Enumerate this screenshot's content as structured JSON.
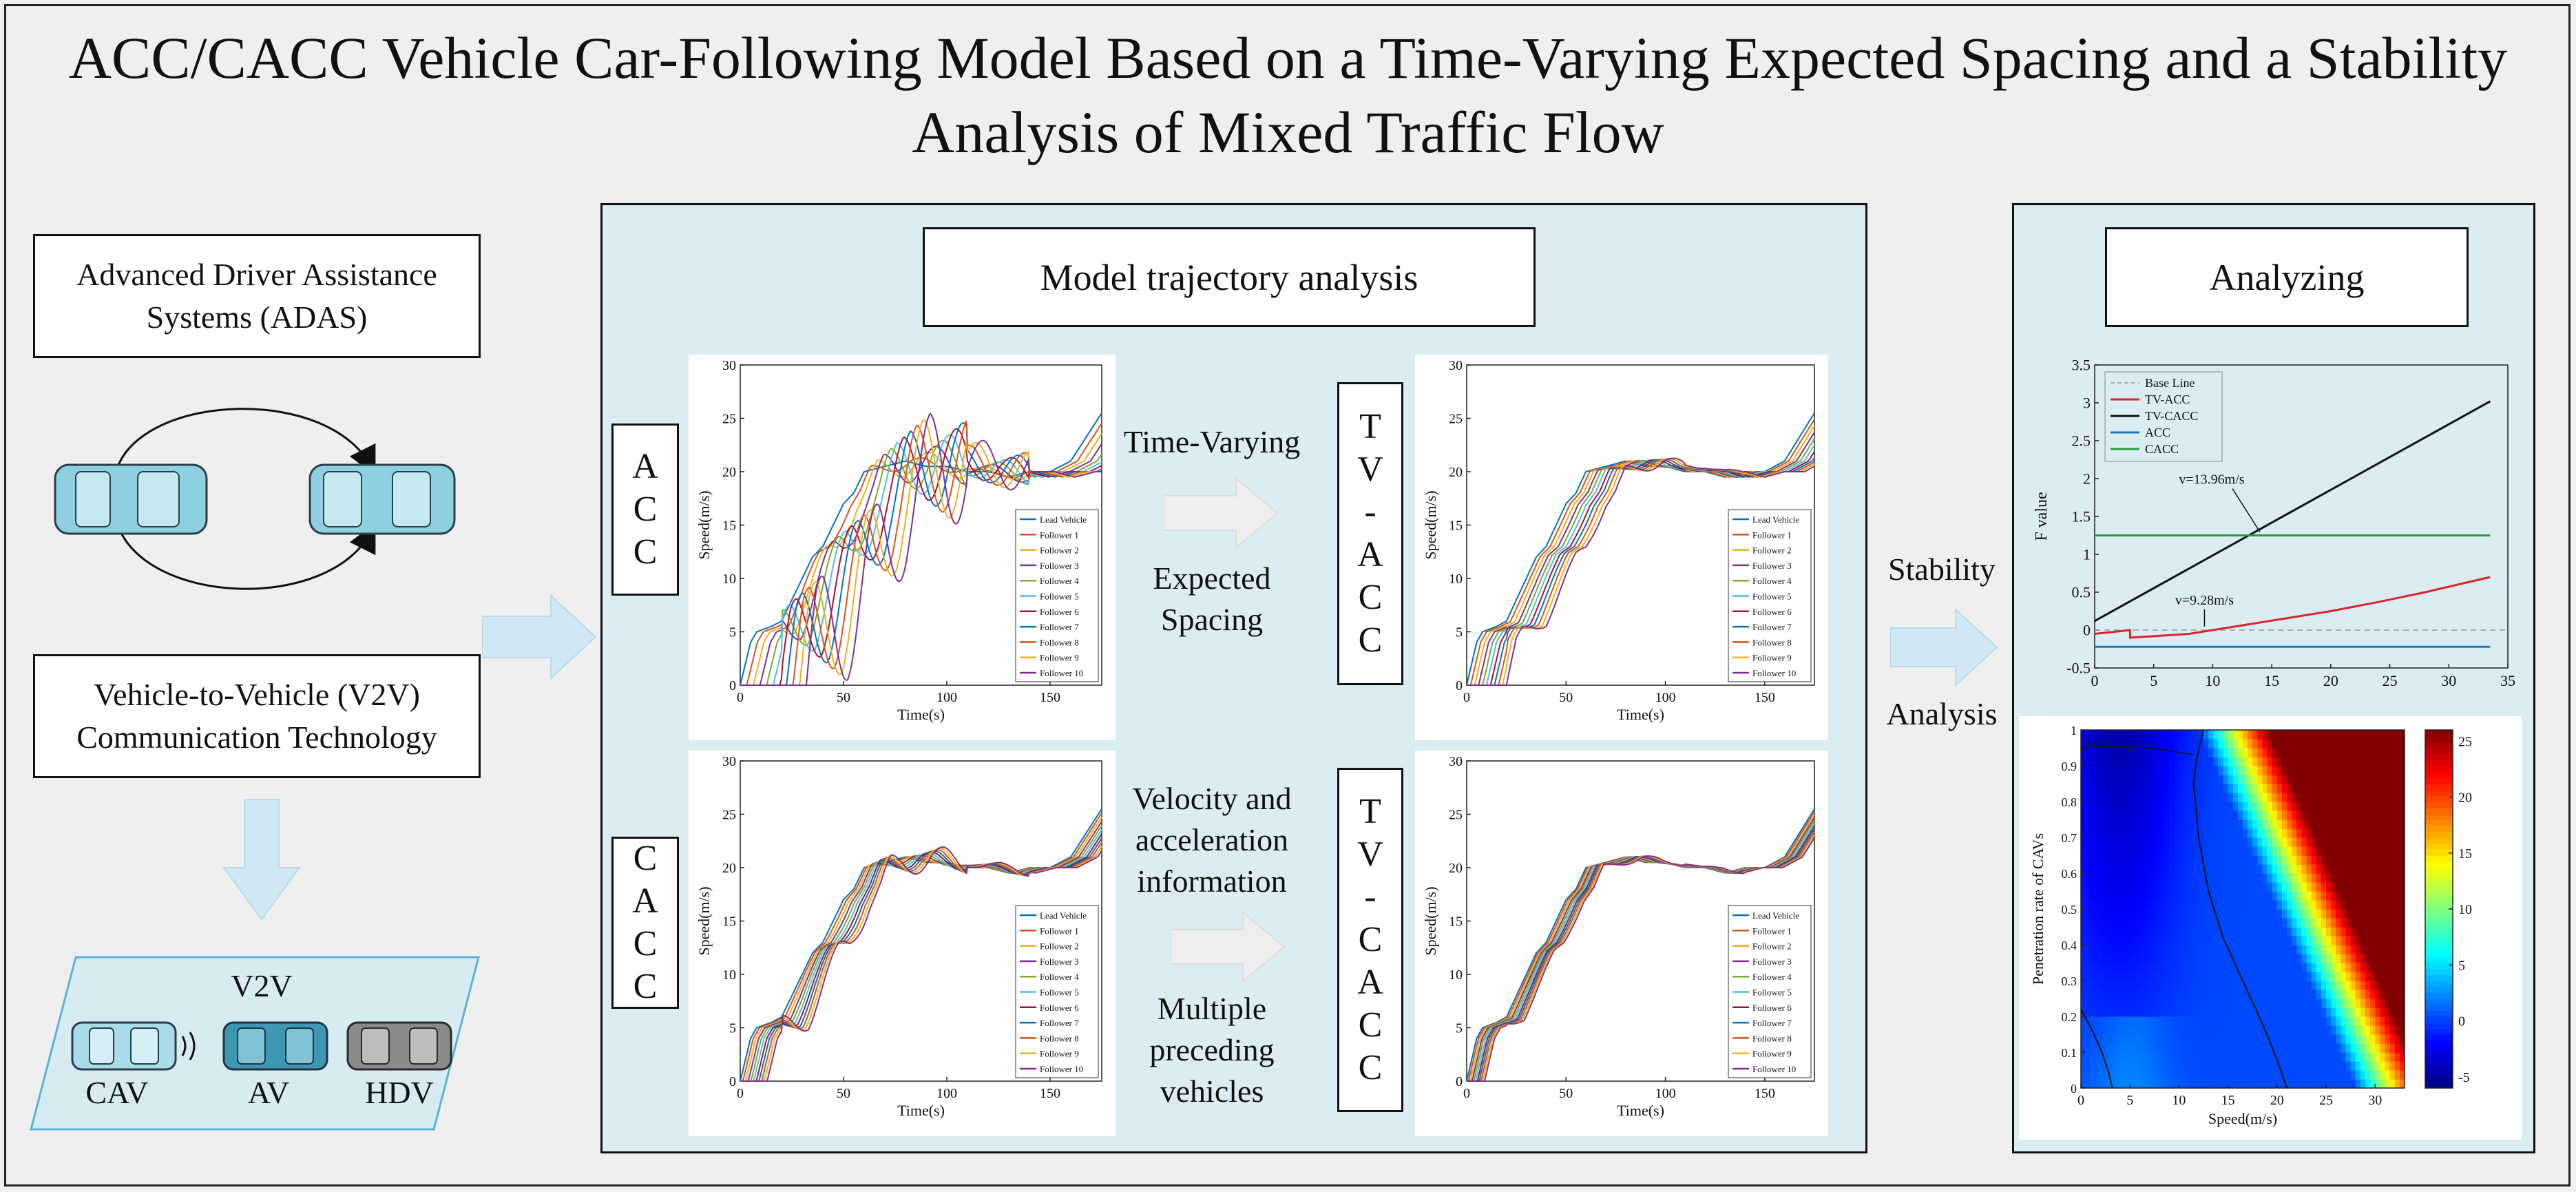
{
  "title": "ACC/CACC Vehicle Car-Following Model Based on a Time-Varying Expected Spacing and a Stability Analysis of Mixed Traffic Flow",
  "left": {
    "adas_label": "Advanced Driver Assistance Systems (ADAS)",
    "v2v_label": "Vehicle-to-Vehicle (V2V) Communication Technology",
    "v2v_tag": "V2V",
    "vehicle_types": [
      "CAV",
      "AV",
      "HDV"
    ]
  },
  "middle": {
    "heading": "Model trajectory analysis",
    "row_labels": [
      "A\nC\nC",
      "C\nA\nC\nC"
    ],
    "tv_labels": [
      "T\nV\n-\nA\nC\nC",
      "T\nV\n-\nC\nA\nC\nC"
    ],
    "arrow_top_above": "Time-Varying",
    "arrow_top_below": "Expected\nSpacing",
    "arrow_bottom_above": "Velocity and\nacceleration\ninformation",
    "arrow_bottom_below": "Multiple\npreceding\nvehicles",
    "legend": [
      "Lead Vehicle",
      "Follower 1",
      "Follower 2",
      "Follower 3",
      "Follower 4",
      "Follower 5",
      "Follower 6",
      "Follower 7",
      "Follower 8",
      "Follower 9",
      "Follower 10"
    ],
    "legend_colors": [
      "#0072bd",
      "#d95319",
      "#edb120",
      "#7e2f8e",
      "#77ac30",
      "#4dbeee",
      "#a2142f",
      "#0072bd",
      "#d95319",
      "#edb120",
      "#7e2f8e"
    ]
  },
  "stability": {
    "above": "Stability",
    "below": "Analysis"
  },
  "right": {
    "heading": "Analyzing"
  },
  "chart_data": [
    {
      "type": "line",
      "panel": "ACC",
      "xlabel": "Time(s)",
      "ylabel": "Speed(m/s)",
      "xlim": [
        0,
        175
      ],
      "ylim": [
        0,
        30
      ],
      "xticks": [
        0,
        50,
        100,
        150
      ],
      "yticks": [
        0,
        5,
        10,
        15,
        20,
        25,
        30
      ],
      "lead_x": [
        0,
        5,
        8,
        15,
        20,
        25,
        30,
        35,
        40,
        45,
        50,
        55,
        60,
        70,
        80,
        90,
        100,
        110,
        120,
        130,
        140,
        150,
        160,
        170,
        175
      ],
      "lead_y": [
        0,
        4,
        5,
        5.5,
        6,
        8,
        10,
        12,
        13,
        15,
        17,
        18,
        20,
        20.5,
        21,
        20.5,
        20.5,
        20,
        20,
        19.5,
        20,
        20,
        21,
        24,
        25.5
      ],
      "lag_step": 3.2,
      "amplitude_gain": 0.55
    },
    {
      "type": "line",
      "panel": "TV-ACC",
      "xlabel": "Time(s)",
      "ylabel": "Speed(m/s)",
      "xlim": [
        0,
        175
      ],
      "ylim": [
        0,
        30
      ],
      "xticks": [
        0,
        50,
        100,
        150
      ],
      "yticks": [
        0,
        5,
        10,
        15,
        20,
        25,
        30
      ],
      "lead_x": [
        0,
        5,
        8,
        15,
        20,
        25,
        30,
        35,
        40,
        45,
        50,
        55,
        60,
        70,
        80,
        90,
        100,
        110,
        120,
        130,
        140,
        150,
        160,
        170,
        175
      ],
      "lead_y": [
        0,
        4,
        5,
        5.5,
        6,
        8,
        10,
        12,
        13,
        15,
        17,
        18,
        20,
        20.5,
        21,
        20.5,
        20.5,
        20,
        20,
        19.5,
        20,
        20,
        21,
        24,
        25.5
      ],
      "lag_step": 2.0,
      "amplitude_gain": 0.05
    },
    {
      "type": "line",
      "panel": "CACC",
      "xlabel": "Time(s)",
      "ylabel": "Speed(m/s)",
      "xlim": [
        0,
        175
      ],
      "ylim": [
        0,
        30
      ],
      "xticks": [
        0,
        50,
        100,
        150
      ],
      "yticks": [
        0,
        5,
        10,
        15,
        20,
        25,
        30
      ],
      "lead_x": [
        0,
        5,
        8,
        15,
        20,
        25,
        30,
        35,
        40,
        45,
        50,
        55,
        60,
        70,
        80,
        90,
        100,
        110,
        120,
        130,
        140,
        150,
        160,
        170,
        175
      ],
      "lead_y": [
        0,
        4,
        5,
        5.5,
        6,
        8,
        10,
        12,
        13,
        15,
        17,
        18,
        20,
        20.5,
        21,
        20.5,
        20.5,
        20,
        20,
        19.5,
        20,
        20,
        21,
        24,
        25.5
      ],
      "lag_step": 1.3,
      "amplitude_gain": 0.12
    },
    {
      "type": "line",
      "panel": "TV-CACC",
      "xlabel": "Time(s)",
      "ylabel": "Speed(m/s)",
      "xlim": [
        0,
        175
      ],
      "ylim": [
        0,
        30
      ],
      "xticks": [
        0,
        50,
        100,
        150
      ],
      "yticks": [
        0,
        5,
        10,
        15,
        20,
        25,
        30
      ],
      "lead_x": [
        0,
        5,
        8,
        15,
        20,
        25,
        30,
        35,
        40,
        45,
        50,
        55,
        60,
        70,
        80,
        90,
        100,
        110,
        120,
        130,
        140,
        150,
        160,
        170,
        175
      ],
      "lead_y": [
        0,
        4,
        5,
        5.5,
        6,
        8,
        10,
        12,
        13,
        15,
        17,
        18,
        20,
        20.5,
        21,
        20.5,
        20.5,
        20,
        20,
        19.5,
        20,
        20,
        21,
        24,
        25.5
      ],
      "lag_step": 0.9,
      "amplitude_gain": 0.03
    },
    {
      "type": "line",
      "panel": "F-value",
      "xlabel": "",
      "ylabel": "F value",
      "xlim": [
        0,
        35
      ],
      "ylim": [
        -0.5,
        3.5
      ],
      "xticks": [
        0,
        5,
        10,
        15,
        20,
        25,
        30,
        35
      ],
      "yticks": [
        -0.5,
        0,
        0.5,
        1,
        1.5,
        2,
        2.5,
        3,
        3.5
      ],
      "series": [
        {
          "name": "Base Line",
          "color": "#999999",
          "dashed": true,
          "x": [
            0,
            35
          ],
          "y": [
            0,
            0
          ]
        },
        {
          "name": "TV-ACC",
          "color": "#d62728",
          "x": [
            0,
            3,
            3,
            8,
            12,
            16,
            20,
            24,
            28,
            33.5
          ],
          "y": [
            -0.05,
            0,
            -0.1,
            -0.05,
            0.05,
            0.15,
            0.25,
            0.37,
            0.5,
            0.7
          ]
        },
        {
          "name": "TV-CACC",
          "color": "#111111",
          "x": [
            0,
            33.5
          ],
          "y": [
            0.12,
            3.02
          ]
        },
        {
          "name": "ACC",
          "color": "#1f77b4",
          "x": [
            0,
            33.5
          ],
          "y": [
            -0.22,
            -0.22
          ]
        },
        {
          "name": "CACC",
          "color": "#2a9d3a",
          "x": [
            0,
            33.5
          ],
          "y": [
            1.25,
            1.25
          ]
        }
      ],
      "annotations": [
        {
          "text": "v=13.96m/s",
          "x": 14,
          "y": 1.25
        },
        {
          "text": "v=9.28m/s",
          "x": 9.3,
          "y": 0.02
        }
      ]
    },
    {
      "type": "heatmap",
      "panel": "penetration",
      "xlabel": "Speed(m/s)",
      "ylabel": "Penetration rate of CAVs",
      "xlim": [
        0,
        33
      ],
      "ylim": [
        0,
        1
      ],
      "xticks": [
        0,
        5,
        10,
        15,
        20,
        25,
        30
      ],
      "yticks": [
        0,
        0.1,
        0.2,
        0.3,
        0.4,
        0.5,
        0.6,
        0.7,
        0.8,
        0.9,
        1
      ],
      "colorbar_ticks": [
        -5,
        0,
        5,
        10,
        15,
        20,
        25
      ],
      "contour_label": "0.9340",
      "contour_zero_points": [
        [
          12.5,
          1.0
        ],
        [
          11.8,
          0.92
        ],
        [
          11.5,
          0.85
        ],
        [
          12.0,
          0.7
        ],
        [
          13.0,
          0.55
        ],
        [
          14.5,
          0.42
        ],
        [
          16.5,
          0.3
        ],
        [
          18.5,
          0.18
        ],
        [
          20.0,
          0.08
        ],
        [
          21.0,
          0.0
        ]
      ]
    }
  ]
}
